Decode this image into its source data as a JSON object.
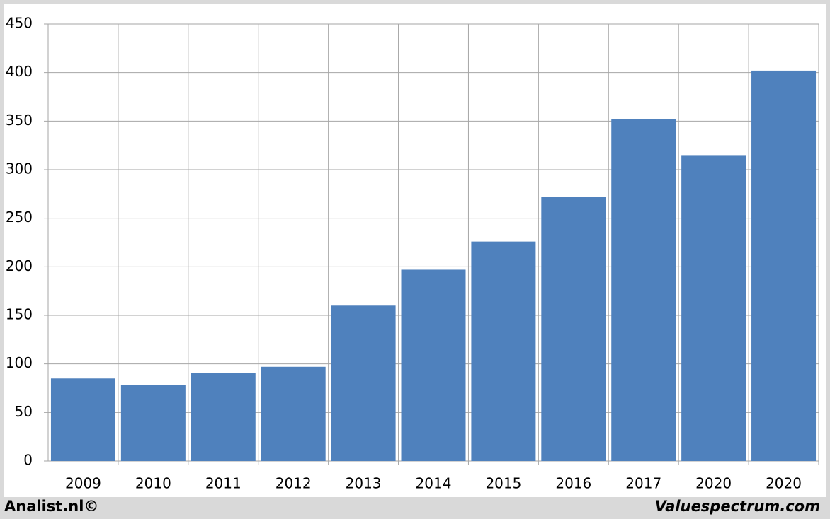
{
  "chart_data": {
    "type": "bar",
    "categories": [
      "2009",
      "2010",
      "2011",
      "2012",
      "2013",
      "2014",
      "2015",
      "2016",
      "2017",
      "2020",
      "2020"
    ],
    "values": [
      85,
      78,
      91,
      97,
      160,
      197,
      226,
      272,
      352,
      315,
      402
    ],
    "color": "#4f81bd",
    "ylim": [
      0,
      450
    ],
    "yticks": [
      0,
      50,
      100,
      150,
      200,
      250,
      300,
      350,
      400,
      450
    ],
    "grid": true,
    "annotations": [
      "Analist.nl©",
      "Valuespectrum.com"
    ]
  }
}
